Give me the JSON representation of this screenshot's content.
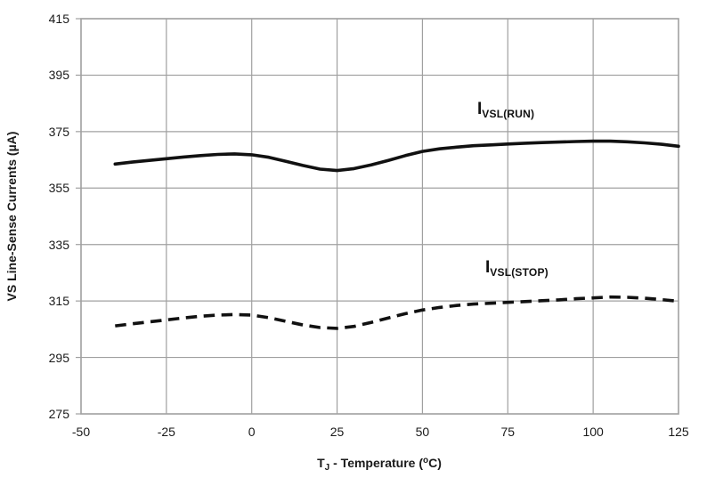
{
  "chart_data": {
    "type": "line",
    "title": "",
    "xlabel": "TJ - Temperature (°C)",
    "ylabel": "VS Line-Sense Currents (µA)",
    "xlim": [
      -50,
      125
    ],
    "ylim": [
      275,
      415
    ],
    "x_ticks": [
      -50,
      -25,
      0,
      25,
      50,
      75,
      100,
      125
    ],
    "y_ticks": [
      275,
      295,
      315,
      335,
      355,
      375,
      395,
      415
    ],
    "grid": true,
    "legend_position": "inline-annotations",
    "series": [
      {
        "name": "IVSL(RUN)",
        "style": "solid",
        "color": "#111111",
        "x": [
          -40,
          -35,
          -30,
          -25,
          -20,
          -15,
          -10,
          -5,
          0,
          5,
          10,
          15,
          20,
          25,
          30,
          35,
          40,
          45,
          50,
          55,
          60,
          65,
          70,
          75,
          80,
          85,
          90,
          95,
          100,
          105,
          110,
          115,
          120,
          125
        ],
        "y": [
          363.5,
          364.2,
          364.8,
          365.4,
          366.0,
          366.5,
          366.9,
          367.1,
          366.8,
          365.9,
          364.5,
          363.0,
          361.7,
          361.2,
          361.9,
          363.2,
          364.8,
          366.5,
          368.0,
          368.9,
          369.5,
          370.0,
          370.3,
          370.6,
          370.9,
          371.1,
          371.3,
          371.5,
          371.6,
          371.6,
          371.4,
          371.0,
          370.5,
          369.8
        ]
      },
      {
        "name": "IVSL(STOP)",
        "style": "dashed",
        "color": "#111111",
        "x": [
          -40,
          -35,
          -30,
          -25,
          -20,
          -15,
          -10,
          -5,
          0,
          5,
          10,
          15,
          20,
          25,
          30,
          35,
          40,
          45,
          50,
          55,
          60,
          65,
          70,
          75,
          80,
          85,
          90,
          95,
          100,
          105,
          110,
          115,
          120,
          125
        ],
        "y": [
          306.2,
          306.9,
          307.6,
          308.3,
          309.0,
          309.6,
          310.0,
          310.2,
          310.0,
          309.1,
          307.8,
          306.5,
          305.6,
          305.3,
          306.0,
          307.4,
          309.0,
          310.5,
          311.8,
          312.7,
          313.4,
          313.9,
          314.2,
          314.5,
          314.8,
          315.1,
          315.4,
          315.8,
          316.1,
          316.4,
          316.3,
          316.0,
          315.5,
          314.9
        ]
      }
    ]
  },
  "labels": {
    "ylabel": "VS Line-Sense Currents (µA)",
    "xlabel_pre": "T",
    "xlabel_sub": "J",
    "xlabel_mid": " - Temperature (",
    "xlabel_sup": "o",
    "xlabel_post": "C)",
    "run_main": "I",
    "run_sub": "VSL(RUN)",
    "stop_main": "I",
    "stop_sub": "VSL(STOP)"
  },
  "colors": {
    "curve": "#111111",
    "gridline": "#a0a0a0",
    "plot_border": "#a0a0a0",
    "text": "#1a1a1a",
    "background": "#ffffff"
  },
  "geometry_note": "plot area spans x -50..125 degC and y 275..415 uA"
}
